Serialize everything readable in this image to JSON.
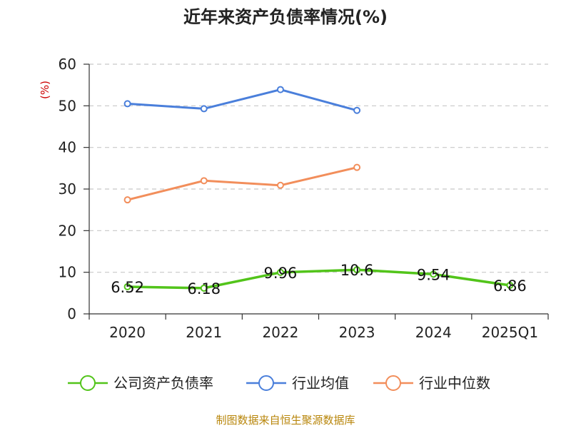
{
  "chart_data": {
    "type": "line",
    "title": "近年来资产负债率情况(%)",
    "ylabel": "(%)",
    "xlabel": "",
    "categories": [
      "2020",
      "2021",
      "2022",
      "2023",
      "2024",
      "2025Q1"
    ],
    "ylim": [
      0,
      60
    ],
    "yticks": [
      0,
      10,
      20,
      30,
      40,
      50,
      60
    ],
    "grid": true,
    "legend_position": "bottom",
    "series": [
      {
        "name": "公司资产负债率",
        "color": "#52c41a",
        "values": [
          6.52,
          6.18,
          9.96,
          10.6,
          9.54,
          6.86
        ],
        "labels": [
          "6.52",
          "6.18",
          "9.96",
          "10.6",
          "9.54",
          "6.86"
        ]
      },
      {
        "name": "行业均值",
        "color": "#4a7fdb",
        "values": [
          50.5,
          49.3,
          53.9,
          48.9,
          null,
          null
        ]
      },
      {
        "name": "行业中位数",
        "color": "#f28e5b",
        "values": [
          27.4,
          32.0,
          30.9,
          35.2,
          null,
          null
        ]
      }
    ],
    "source": "制图数据来自恒生聚源数据库"
  }
}
